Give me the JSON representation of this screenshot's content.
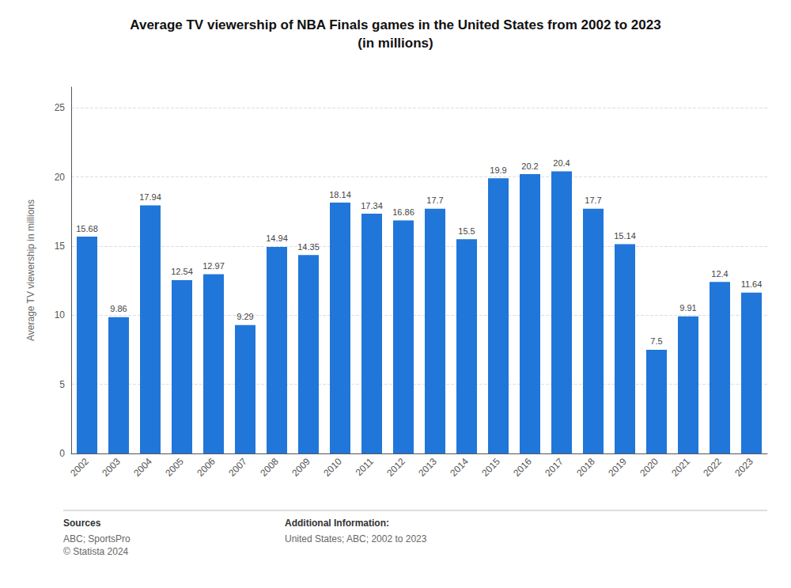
{
  "chart_data": {
    "type": "bar",
    "title": "Average TV viewership of NBA Finals games in the United States from 2002 to 2023",
    "subtitle": "(in millions)",
    "ylabel": "Average TV viewership in millions",
    "categories": [
      "2002",
      "2003",
      "2004",
      "2005",
      "2006",
      "2007",
      "2008",
      "2009",
      "2010",
      "2011",
      "2012",
      "2013",
      "2014",
      "2015",
      "2016",
      "2017",
      "2018",
      "2019",
      "2020",
      "2021",
      "2022",
      "2023"
    ],
    "values": [
      15.68,
      9.86,
      17.94,
      12.54,
      12.97,
      9.29,
      14.94,
      14.35,
      18.14,
      17.34,
      16.86,
      17.7,
      15.5,
      19.9,
      20.2,
      20.4,
      17.7,
      15.14,
      7.5,
      9.91,
      12.4,
      11.64
    ],
    "color": "#2176d9",
    "ylim": [
      0,
      26.5
    ],
    "yticks": [
      0,
      5,
      10,
      15,
      20,
      25
    ],
    "grid": true,
    "data_labels": true,
    "annotations": [
      "Sources",
      "ABC; SportsPro\n© Statista 2024",
      "Additional Information:",
      "United States; ABC; 2002 to 2023"
    ]
  }
}
